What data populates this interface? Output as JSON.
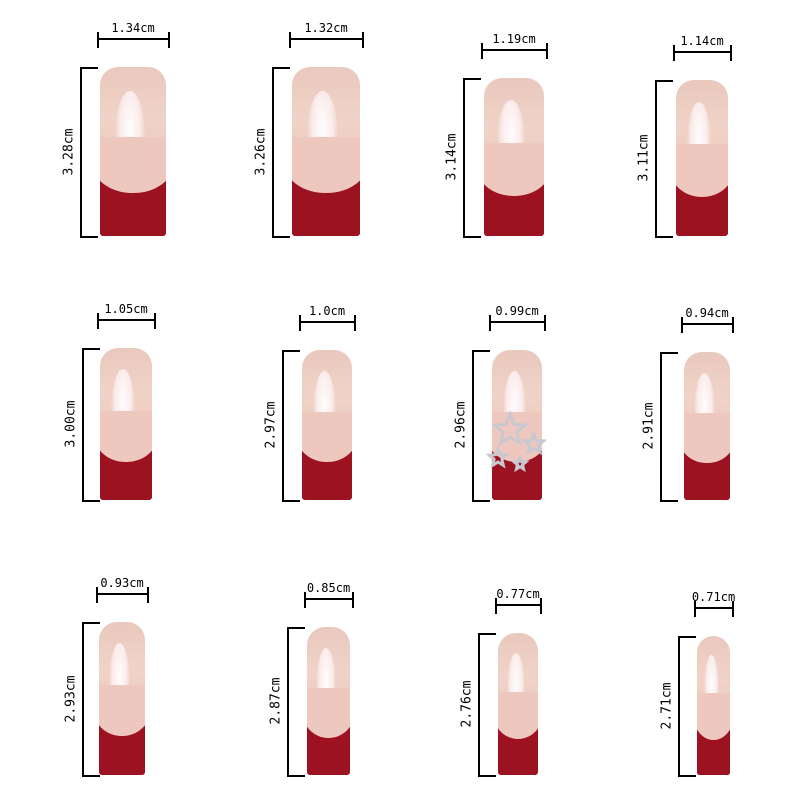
{
  "nails": [
    {
      "width": "1.34cm",
      "length": "3.28cm"
    },
    {
      "width": "1.32cm",
      "length": "3.26cm"
    },
    {
      "width": "1.19cm",
      "length": "3.14cm"
    },
    {
      "width": "1.14cm",
      "length": "3.11cm"
    },
    {
      "width": "1.05cm",
      "length": "3.00cm"
    },
    {
      "width": "1.0cm",
      "length": "2.97cm"
    },
    {
      "width": "0.99cm",
      "length": "2.96cm",
      "decoration": "silver-star-charms"
    },
    {
      "width": "0.94cm",
      "length": "2.91cm"
    },
    {
      "width": "0.93cm",
      "length": "2.93cm"
    },
    {
      "width": "0.85cm",
      "length": "2.87cm"
    },
    {
      "width": "0.77cm",
      "length": "2.76cm"
    },
    {
      "width": "0.71cm",
      "length": "2.71cm"
    }
  ],
  "colors": {
    "tip": "#9c1220",
    "base": "#ecc8bd",
    "lines": "#000000"
  }
}
